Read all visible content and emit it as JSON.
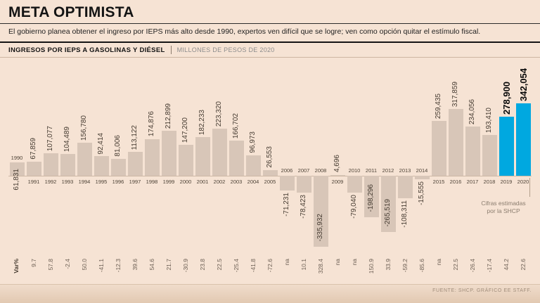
{
  "title": "META OPTIMISTA",
  "subtitle": "El gobierno planea obtener el ingreso por IEPS más alto desde 1990, expertos ven difícil que se logre; ven como opción quitar el estímulo fiscal.",
  "header": {
    "label": "INGRESOS POR IEPS A GASOLINAS Y DIÉSEL",
    "units": "MILLONES DE PESOS DE 2020"
  },
  "annotation": {
    "line1": "Cifras estimadas",
    "line2": "por la SHCP"
  },
  "source": "FUENTE: SHCP. GRÁFICO EE STAFF.",
  "colors": {
    "background": "#f6e3d4",
    "bar": "#d8c6b8",
    "highlight": "#00a8e0"
  },
  "chart_data": {
    "type": "bar",
    "title": "INGRESOS POR IEPS A GASOLINAS Y DIÉSEL",
    "ylabel": "Millones de pesos de 2020",
    "var_axis_label": "Var%",
    "categories": [
      1990,
      1991,
      1992,
      1993,
      1994,
      1995,
      1996,
      1997,
      1998,
      1999,
      2000,
      2001,
      2002,
      2003,
      2004,
      2005,
      2006,
      2007,
      2008,
      2009,
      2010,
      2011,
      2012,
      2013,
      2014,
      2015,
      2016,
      2017,
      2018,
      2019,
      2020
    ],
    "values": [
      61831,
      67859,
      107077,
      104489,
      156780,
      92414,
      81006,
      113122,
      174876,
      212899,
      147200,
      182233,
      223320,
      166702,
      96973,
      26553,
      -71231,
      -78423,
      -335932,
      4696,
      -79040,
      -198296,
      -265519,
      -108311,
      -15555,
      259435,
      317859,
      234056,
      193410,
      278900,
      342054
    ],
    "labels": [
      "61,831",
      "67,859",
      "107,077",
      "104,489",
      "156,780",
      "92,414",
      "81,006",
      "113,122",
      "174,876",
      "212,899",
      "147,200",
      "182,233",
      "223,320",
      "166,702",
      "96,973",
      "26,553",
      "-71,231",
      "-78,423",
      "-335,932",
      "4,696",
      "-79,040",
      "-198,296",
      "-265,519",
      "-108,311",
      "-15,555",
      "259,435",
      "317,859",
      "234,056",
      "193,410",
      "278,900",
      "342,054"
    ],
    "var_pct": [
      "",
      "9.7",
      "57.8",
      "-2.4",
      "50.0",
      "-41.1",
      "-12.3",
      "39.6",
      "54.6",
      "21.7",
      "-30.9",
      "23.8",
      "22.5",
      "-25.4",
      "-41.8",
      "-72.6",
      "na",
      "10.1",
      "328.4",
      "na",
      "na",
      "150.9",
      "33.9",
      "-59.2",
      "-85.6",
      "na",
      "22.5",
      "-26.4",
      "-17.4",
      "44.2",
      "22.6"
    ],
    "highlighted": [
      2019,
      2020
    ],
    "estimated_note": "Cifras estimadas por la SHCP"
  }
}
